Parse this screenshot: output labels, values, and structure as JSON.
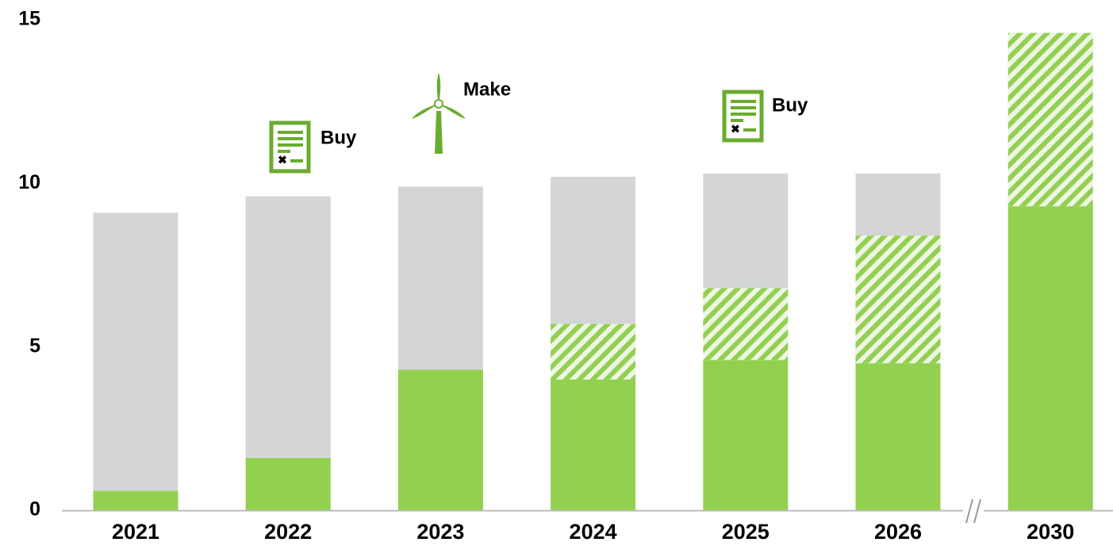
{
  "chart_data": {
    "type": "stacked_bar",
    "categories": [
      "2021",
      "2022",
      "2023",
      "2024",
      "2025",
      "2026",
      "2030"
    ],
    "series": [
      {
        "color": "#92d050",
        "values": [
          0.6,
          1.6,
          4.3,
          4.0,
          4.6,
          4.5,
          9.3
        ]
      },
      {
        "color": "#92d050",
        "pattern": "hatch",
        "values": [
          0,
          0,
          0,
          1.7,
          2.2,
          3.9,
          5.3
        ]
      },
      {
        "color": "#d4d5d7",
        "values": [
          8.5,
          8.0,
          5.6,
          4.5,
          3.5,
          1.9,
          0
        ]
      }
    ],
    "ylim": [
      0,
      15
    ],
    "yticks": [
      0,
      5,
      10,
      15
    ],
    "grid": false,
    "annotations": [
      "Buy",
      "Make",
      "Buy"
    ]
  }
}
